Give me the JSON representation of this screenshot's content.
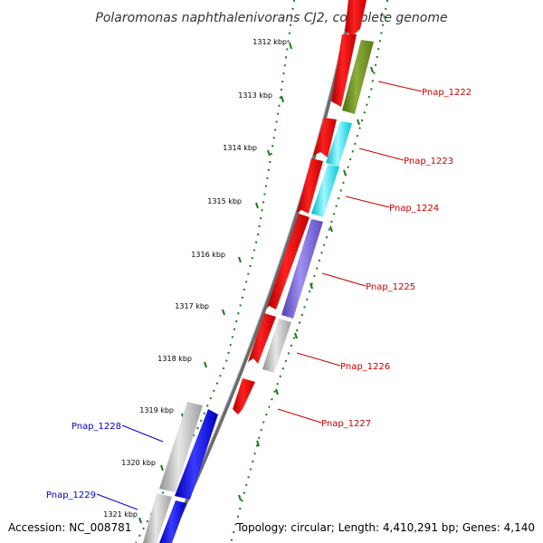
{
  "title": "Polaromonas naphthalenivorans CJ2, complete genome",
  "accession": "Accession: NC_008781",
  "summary": "Topology: circular; Length: 4,410,291 bp; Genes: 4,140",
  "ticks": [
    "1312 kbp",
    "1313 kbp",
    "1314 kbp",
    "1315 kbp",
    "1316 kbp",
    "1317 kbp",
    "1318 kbp",
    "1319 kbp",
    "1320 kbp",
    "1321 kbp"
  ],
  "genes_right": [
    {
      "label": "Pnap_1222",
      "color": "#cc0000"
    },
    {
      "label": "Pnap_1223",
      "color": "#cc0000"
    },
    {
      "label": "Pnap_1224",
      "color": "#cc0000"
    },
    {
      "label": "Pnap_1225",
      "color": "#cc0000"
    },
    {
      "label": "Pnap_1226",
      "color": "#cc0000"
    },
    {
      "label": "Pnap_1227",
      "color": "#cc0000"
    }
  ],
  "genes_left": [
    {
      "label": "Pnap_1228",
      "color": "#0000cc"
    },
    {
      "label": "Pnap_1229",
      "color": "#0000cc"
    }
  ],
  "colors": {
    "backbone": "#808080",
    "ticks": "#1a7a1a",
    "red": "#ff0000",
    "olive": "#6b8e23",
    "cyan": "#00e5ee",
    "slate": "#7060d0",
    "grey": "#c0c0c0",
    "blue": "#0000ff"
  }
}
